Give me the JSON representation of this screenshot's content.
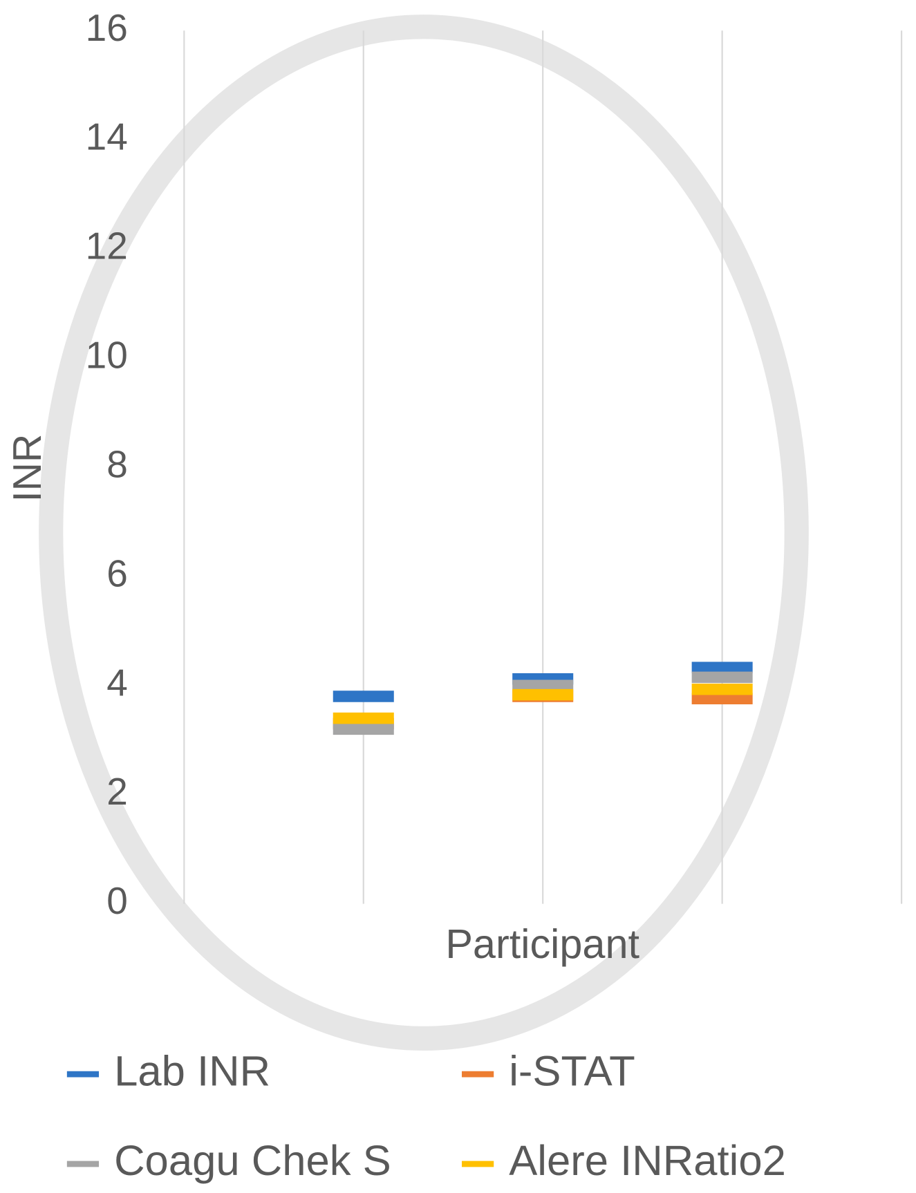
{
  "chart_data": {
    "type": "line",
    "y_label": "INR",
    "x_label": "Participant",
    "x": [
      1,
      2,
      3
    ],
    "xlim": [
      0,
      4
    ],
    "ylim": [
      0,
      16
    ],
    "yticks": [
      0,
      2,
      4,
      6,
      8,
      10,
      12,
      14,
      16
    ],
    "grid": true,
    "markers_only": true,
    "series": [
      {
        "name": "Lab INR",
        "color": "#2e75c6",
        "values": [
          3.8,
          4.12,
          4.33
        ]
      },
      {
        "name": "i-STAT",
        "color": "#ed7d31",
        "values": [
          3.3,
          3.8,
          3.76
        ]
      },
      {
        "name": "Coagu Chek S",
        "color": "#a5a5a5",
        "values": [
          3.2,
          4.0,
          4.15
        ]
      },
      {
        "name": "Alere INRatio2",
        "color": "#ffc000",
        "values": [
          3.4,
          3.83,
          3.93
        ]
      }
    ]
  }
}
